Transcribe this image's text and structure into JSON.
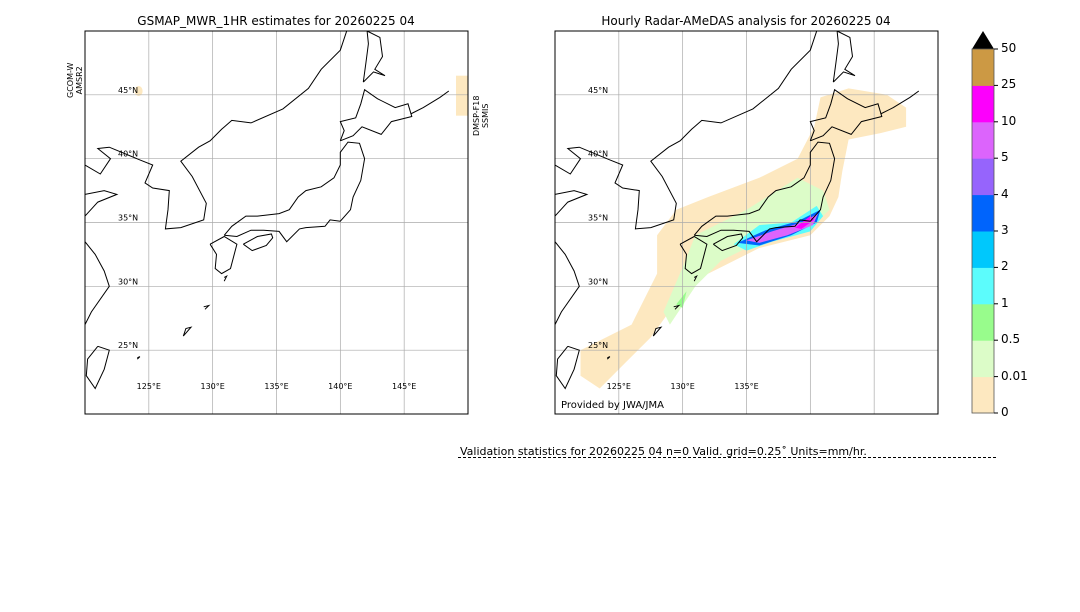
{
  "left_panel": {
    "title": "GSMAP_MWR_1HR estimates for 20260225 04",
    "left_sensor": [
      "GCOM-W",
      "AMSR2"
    ],
    "right_sensor": [
      "DMSP-F18",
      "SSMIS"
    ]
  },
  "right_panel": {
    "title": "Hourly Radar-AMeDAS analysis for 20260225 04",
    "credit": "Provided by JWA/JMA"
  },
  "validation_text": "Validation statistics for 20260225 04  n=0 Valid. grid=0.25˚ Units=mm/hr.",
  "chart_data": {
    "type": "heatmap",
    "lon_range": [
      120,
      150
    ],
    "lat_range": [
      20,
      50
    ],
    "lon_ticks": [
      "125°E",
      "130°E",
      "135°E",
      "140°E",
      "145°E"
    ],
    "lon_tick_values": [
      125,
      130,
      135,
      140,
      145
    ],
    "lat_ticks": [
      "45°N",
      "40°N",
      "35°N",
      "30°N",
      "25°N"
    ],
    "lat_tick_values": [
      45,
      40,
      35,
      30,
      25
    ],
    "right_lon_ticks": [
      "125°E",
      "130°E",
      "135°E"
    ],
    "colorbar": {
      "labels": [
        "0",
        "0.01",
        "0.5",
        "1",
        "2",
        "3",
        "4",
        "5",
        "10",
        "25",
        "50"
      ],
      "colors": [
        "#fde8c0",
        "#dcfcc8",
        "#98fc8c",
        "#5cfcfc",
        "#00c8fc",
        "#0064fc",
        "#9664fc",
        "#dc64fc",
        "#fc00fc",
        "#cc9944"
      ],
      "extend": "max",
      "extend_color": "#000000"
    },
    "right_panel_rain": "Rain band along southern Japan coast, heaviest (10-25 mm/hr) off Kanto/Tokai; light rain 0.01-0.5 mm/hr from Ryukyu to Hokkaido",
    "left_panel_rain": "Mostly no data/zero; trace (0-0.01) near 45°N 124°E and east edge"
  }
}
